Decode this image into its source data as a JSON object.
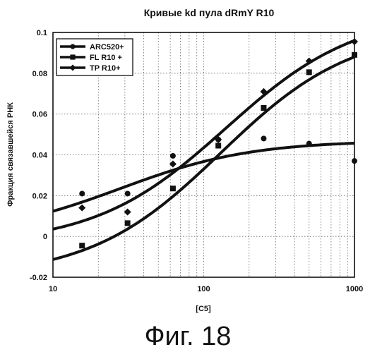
{
  "chart_data": {
    "type": "scatter",
    "title": "Кривые kd пула dRmY R10",
    "xlabel": "[C5]",
    "ylabel": "Фракция связавшейся РНК",
    "xscale": "log",
    "xlim": [
      10,
      1000
    ],
    "ylim": [
      -0.02,
      0.1
    ],
    "xticks": [
      "10",
      "100",
      "1000"
    ],
    "yticks": [
      "-0.02",
      "0",
      "0.02",
      "0.04",
      "0.06",
      "0.08",
      "0.1"
    ],
    "grid": true,
    "legend": "top-left",
    "series": [
      {
        "name": "ARC520+",
        "marker": "circle",
        "x": [
          15.6,
          31.25,
          62.5,
          125,
          250,
          500,
          1000
        ],
        "y": [
          0.021,
          0.021,
          0.0395,
          0.0475,
          0.048,
          0.0455,
          0.037
        ],
        "fit": {
          "bottom": 0.0,
          "top": 0.047,
          "ec50": 28,
          "hill": 1
        }
      },
      {
        "name": "FL R10 +",
        "marker": "square",
        "x": [
          15.6,
          31.25,
          62.5,
          125,
          250,
          500,
          1000
        ],
        "y": [
          -0.0045,
          0.0065,
          0.0235,
          0.0445,
          0.063,
          0.0805,
          0.089
        ],
        "fit": {
          "bottom": -0.02,
          "top": 0.102,
          "ec50": 130,
          "hill": 1
        }
      },
      {
        "name": "TP R10+",
        "marker": "diamond",
        "x": [
          15.6,
          31.25,
          62.5,
          125,
          250,
          500,
          1000
        ],
        "y": [
          0.014,
          0.012,
          0.0355,
          0.0475,
          0.071,
          0.086,
          0.0955
        ],
        "fit": {
          "bottom": -0.004,
          "top": 0.11,
          "ec50": 140,
          "hill": 1
        }
      }
    ]
  },
  "caption": "Фиг. 18"
}
